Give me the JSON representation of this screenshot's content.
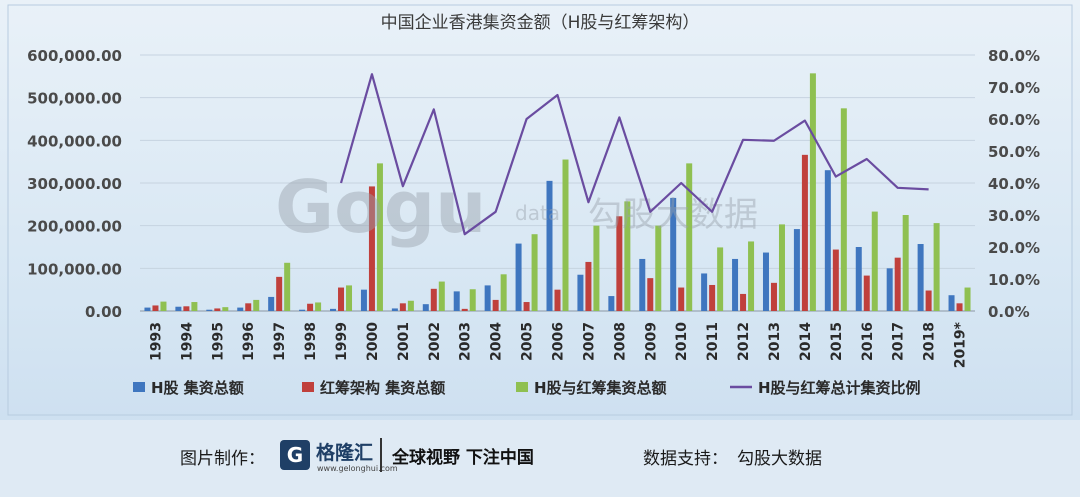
{
  "chart_data": {
    "type": "bar",
    "title": "中国企业香港集资金额（H股与红筹架构）",
    "categories": [
      "1993",
      "1994",
      "1995",
      "1996",
      "1997",
      "1998",
      "1999",
      "2000",
      "2001",
      "2002",
      "2003",
      "2004",
      "2005",
      "2006",
      "2007",
      "2008",
      "2009",
      "2010",
      "2011",
      "2012",
      "2013",
      "2014",
      "2015",
      "2016",
      "2017",
      "2018",
      "2019*"
    ],
    "y_left": {
      "min": 0,
      "max": 600000,
      "ticks": [
        "0.00",
        "100,000.00",
        "200,000.00",
        "300,000.00",
        "400,000.00",
        "500,000.00",
        "600,000.00"
      ]
    },
    "y_right": {
      "min": 0,
      "max": 0.8,
      "ticks": [
        "0.0%",
        "10.0%",
        "20.0%",
        "30.0%",
        "40.0%",
        "50.0%",
        "60.0%",
        "70.0%",
        "80.0%"
      ]
    },
    "series": [
      {
        "name": "H股 集资总额",
        "type": "bar",
        "axis": "left",
        "color": "#3f76bf",
        "values": [
          8000,
          10000,
          3000,
          8000,
          33000,
          3000,
          5000,
          50000,
          6000,
          16000,
          46000,
          60000,
          158000,
          305000,
          85000,
          35000,
          122000,
          265000,
          88000,
          122000,
          137000,
          192000,
          330000,
          150000,
          100000,
          157000,
          37000
        ]
      },
      {
        "name": "红筹架构 集资总额",
        "type": "bar",
        "axis": "left",
        "color": "#c0403c",
        "values": [
          13000,
          11000,
          6000,
          18000,
          80000,
          17000,
          55000,
          292000,
          18000,
          52000,
          5000,
          26000,
          21000,
          50000,
          115000,
          222000,
          77000,
          55000,
          61000,
          40000,
          66000,
          366000,
          144000,
          83000,
          125000,
          48000,
          18000
        ]
      },
      {
        "name": "H股与红筹集资总额",
        "type": "bar",
        "axis": "left",
        "color": "#8fc051",
        "values": [
          22000,
          21000,
          9000,
          26000,
          113000,
          20000,
          60000,
          346000,
          24000,
          69000,
          51000,
          86000,
          180000,
          355000,
          200000,
          257000,
          200000,
          346000,
          149000,
          163000,
          203000,
          557000,
          475000,
          233000,
          225000,
          206000,
          55000
        ]
      },
      {
        "name": "H股与红筹总计集资比例",
        "type": "line",
        "axis": "right",
        "color": "#6a4ca0",
        "values": [
          null,
          null,
          null,
          null,
          null,
          null,
          0.4,
          0.74,
          0.39,
          0.63,
          0.24,
          0.31,
          0.6,
          0.675,
          0.34,
          0.605,
          0.31,
          0.4,
          0.31,
          0.535,
          0.532,
          0.595,
          0.42,
          0.475,
          0.385,
          0.38,
          null
        ]
      }
    ],
    "legend_position": "bottom"
  },
  "footer": {
    "maker_label": "图片制作：",
    "logo_name": "格隆汇",
    "logo_url": "www.gelonghui.com",
    "slogan": "全球视野 下注中国",
    "support_label": "数据支持：",
    "support_name": "勾股大数据"
  },
  "watermark": {
    "text": "Gogu",
    "small": "data",
    "cn": "勾股大数据"
  }
}
